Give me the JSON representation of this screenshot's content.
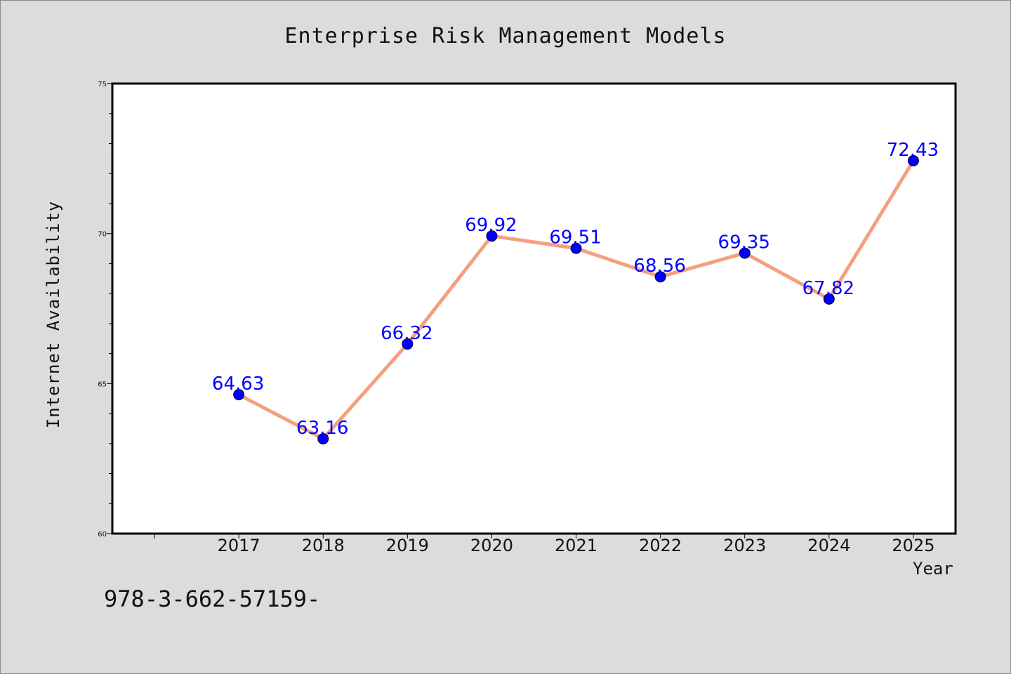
{
  "colors": {
    "background": "#dcdcdc",
    "plot_background": "#ffffff",
    "line": "#f4a07e",
    "marker": "#0000ff",
    "data_label": "#0000ff"
  },
  "footer_text": "978-3-662-57159-",
  "chart_data": {
    "type": "line",
    "title": "Enterprise Risk Management Models",
    "xlabel": "Year",
    "ylabel": "Internet Availability",
    "categories": [
      "2017",
      "2018",
      "2019",
      "2020",
      "2021",
      "2022",
      "2023",
      "2024",
      "2025"
    ],
    "series": [
      {
        "values": [
          64.63,
          63.16,
          66.32,
          69.92,
          69.51,
          68.56,
          69.35,
          67.82,
          72.43
        ],
        "data_labels": [
          "64.63",
          "63.16",
          "66.32",
          "69.92",
          "69.51",
          "68.56",
          "69.35",
          "67.82",
          "72.43"
        ]
      }
    ],
    "xlim": [
      2015.5,
      2025.5
    ],
    "ylim": [
      60,
      75
    ],
    "yticks": [
      60,
      65,
      70,
      75
    ],
    "grid": false,
    "legend": "none"
  }
}
